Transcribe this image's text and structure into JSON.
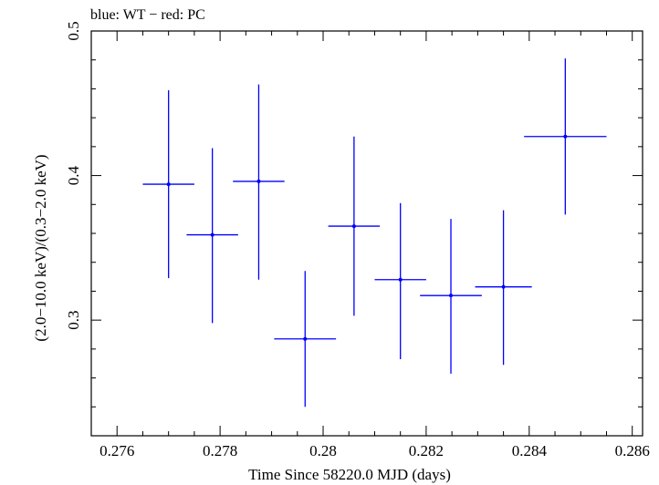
{
  "chart_data": {
    "type": "scatter",
    "title": "blue: WT − red: PC",
    "xlabel": "Time Since 58220.0 MJD (days)",
    "ylabel": "(2.0−10.0 keV)/(0.3−2.0 keV)",
    "xlim": [
      0.2755,
      0.2862
    ],
    "ylim": [
      0.22,
      0.5
    ],
    "x_ticks": [
      0.276,
      0.278,
      0.28,
      0.282,
      0.284,
      0.286
    ],
    "x_tick_labels": [
      "0.276",
      "0.278",
      "0.28",
      "0.282",
      "0.284",
      "0.286"
    ],
    "y_ticks": [
      0.3,
      0.4,
      0.5
    ],
    "y_tick_labels": [
      "0.3",
      "0.4",
      "0.5"
    ],
    "x_minor_step": 0.0005,
    "y_minor_step": 0.02,
    "grid": false,
    "legend": "none",
    "series": [
      {
        "color": "#0000ff",
        "points": [
          {
            "x": 0.277,
            "y": 0.394,
            "xerr": 0.0005,
            "ylo": 0.329,
            "yhi": 0.459
          },
          {
            "x": 0.27785,
            "y": 0.359,
            "xerr": 0.0005,
            "ylo": 0.298,
            "yhi": 0.419
          },
          {
            "x": 0.27875,
            "y": 0.396,
            "xerr": 0.0005,
            "ylo": 0.328,
            "yhi": 0.463
          },
          {
            "x": 0.27965,
            "y": 0.287,
            "xerr": 0.0006,
            "ylo": 0.24,
            "yhi": 0.334
          },
          {
            "x": 0.2806,
            "y": 0.365,
            "xerr": 0.0005,
            "ylo": 0.303,
            "yhi": 0.427
          },
          {
            "x": 0.2815,
            "y": 0.328,
            "xerr": 0.0005,
            "ylo": 0.273,
            "yhi": 0.381
          },
          {
            "x": 0.28248,
            "y": 0.317,
            "xerr": 0.0006,
            "ylo": 0.263,
            "yhi": 0.37
          },
          {
            "x": 0.2835,
            "y": 0.323,
            "xerr": 0.00055,
            "ylo": 0.269,
            "yhi": 0.376
          },
          {
            "x": 0.2847,
            "y": 0.427,
            "xerr": 0.0008,
            "ylo": 0.373,
            "yhi": 0.481
          }
        ]
      }
    ]
  }
}
